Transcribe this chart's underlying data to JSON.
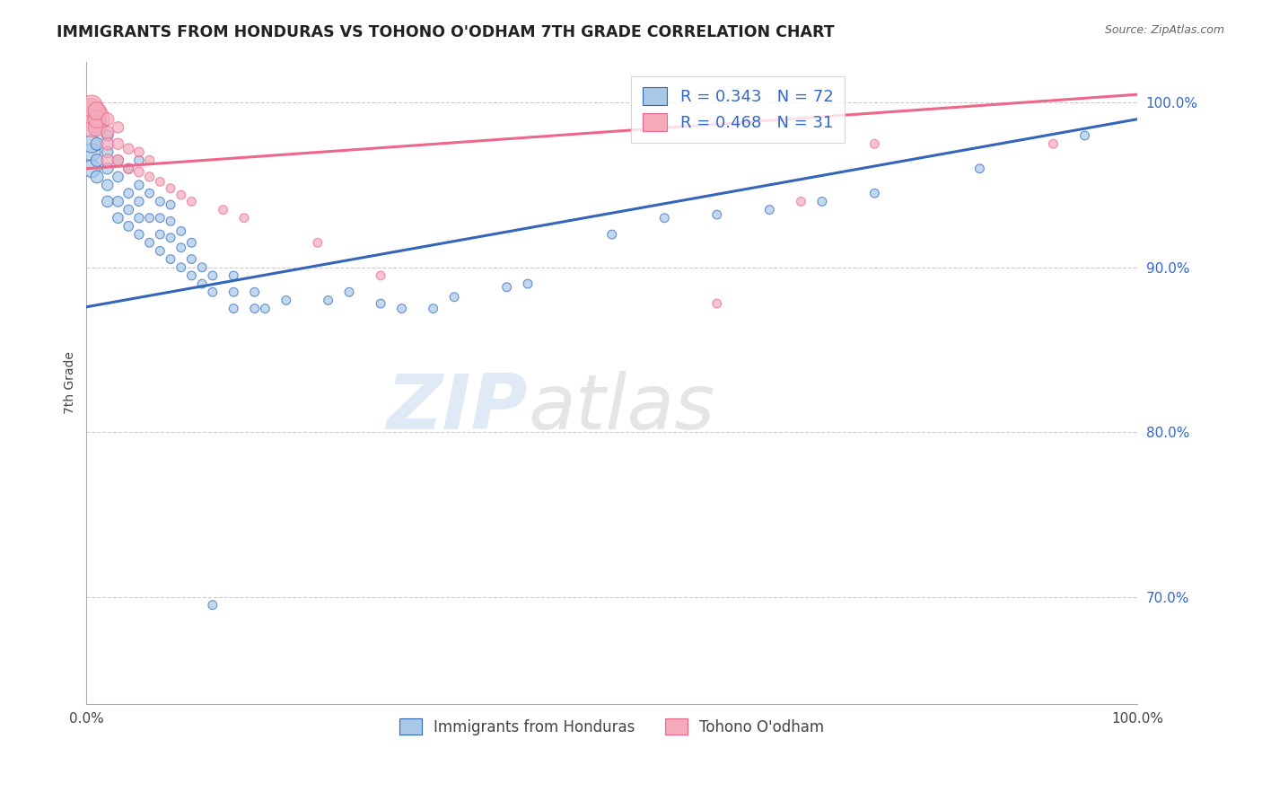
{
  "title": "IMMIGRANTS FROM HONDURAS VS TOHONO O'ODHAM 7TH GRADE CORRELATION CHART",
  "source": "Source: ZipAtlas.com",
  "ylabel": "7th Grade",
  "xlim": [
    0.0,
    1.0
  ],
  "ylim": [
    0.635,
    1.025
  ],
  "yticks": [
    0.7,
    0.8,
    0.9,
    1.0
  ],
  "ytick_labels": [
    "70.0%",
    "80.0%",
    "90.0%",
    "100.0%"
  ],
  "blue_R": 0.343,
  "blue_N": 72,
  "pink_R": 0.468,
  "pink_N": 31,
  "blue_color": "#A8C8E8",
  "pink_color": "#F4AABB",
  "blue_line_color": "#3366BB",
  "pink_line_color": "#EE6688",
  "legend_text_color": "#3366CC",
  "background_color": "#FFFFFF",
  "grid_color": "#CCCCCC",
  "blue_line_x": [
    0.0,
    1.0
  ],
  "blue_line_y": [
    0.876,
    0.99
  ],
  "pink_line_x": [
    0.0,
    1.0
  ],
  "pink_line_y": [
    0.96,
    1.005
  ],
  "blue_scatter_x": [
    0.005,
    0.005,
    0.005,
    0.01,
    0.01,
    0.01,
    0.01,
    0.01,
    0.01,
    0.02,
    0.02,
    0.02,
    0.02,
    0.02,
    0.03,
    0.03,
    0.03,
    0.03,
    0.04,
    0.04,
    0.04,
    0.04,
    0.05,
    0.05,
    0.05,
    0.05,
    0.05,
    0.06,
    0.06,
    0.06,
    0.07,
    0.07,
    0.07,
    0.07,
    0.08,
    0.08,
    0.08,
    0.08,
    0.09,
    0.09,
    0.09,
    0.1,
    0.1,
    0.1,
    0.11,
    0.11,
    0.12,
    0.12,
    0.12,
    0.14,
    0.14,
    0.14,
    0.16,
    0.16,
    0.17,
    0.19,
    0.23,
    0.25,
    0.28,
    0.3,
    0.33,
    0.35,
    0.4,
    0.42,
    0.5,
    0.55,
    0.6,
    0.65,
    0.7,
    0.75,
    0.85,
    0.95
  ],
  "blue_scatter_y": [
    0.97,
    0.96,
    0.975,
    0.955,
    0.965,
    0.975,
    0.985,
    0.99,
    0.995,
    0.94,
    0.95,
    0.96,
    0.97,
    0.98,
    0.93,
    0.94,
    0.955,
    0.965,
    0.925,
    0.935,
    0.945,
    0.96,
    0.92,
    0.93,
    0.94,
    0.95,
    0.965,
    0.915,
    0.93,
    0.945,
    0.91,
    0.92,
    0.93,
    0.94,
    0.905,
    0.918,
    0.928,
    0.938,
    0.9,
    0.912,
    0.922,
    0.895,
    0.905,
    0.915,
    0.89,
    0.9,
    0.695,
    0.885,
    0.895,
    0.875,
    0.885,
    0.895,
    0.875,
    0.885,
    0.875,
    0.88,
    0.88,
    0.885,
    0.878,
    0.875,
    0.875,
    0.882,
    0.888,
    0.89,
    0.92,
    0.93,
    0.932,
    0.935,
    0.94,
    0.945,
    0.96,
    0.98
  ],
  "blue_scatter_size": [
    200,
    200,
    200,
    100,
    100,
    100,
    100,
    100,
    100,
    80,
    80,
    80,
    80,
    80,
    70,
    70,
    70,
    70,
    60,
    60,
    60,
    60,
    55,
    55,
    55,
    55,
    55,
    50,
    50,
    50,
    50,
    50,
    50,
    50,
    50,
    50,
    50,
    50,
    50,
    50,
    50,
    50,
    50,
    50,
    50,
    50,
    50,
    50,
    50,
    50,
    50,
    50,
    50,
    50,
    50,
    50,
    50,
    50,
    50,
    50,
    50,
    50,
    50,
    50,
    50,
    50,
    50,
    50,
    50,
    50,
    50,
    50
  ],
  "pink_scatter_x": [
    0.005,
    0.005,
    0.005,
    0.01,
    0.01,
    0.01,
    0.02,
    0.02,
    0.02,
    0.02,
    0.03,
    0.03,
    0.03,
    0.04,
    0.04,
    0.05,
    0.05,
    0.06,
    0.06,
    0.07,
    0.08,
    0.09,
    0.1,
    0.13,
    0.15,
    0.22,
    0.28,
    0.6,
    0.68,
    0.75,
    0.92
  ],
  "pink_scatter_y": [
    0.99,
    0.995,
    0.998,
    0.985,
    0.99,
    0.995,
    0.965,
    0.975,
    0.982,
    0.99,
    0.965,
    0.975,
    0.985,
    0.96,
    0.972,
    0.958,
    0.97,
    0.955,
    0.965,
    0.952,
    0.948,
    0.944,
    0.94,
    0.935,
    0.93,
    0.915,
    0.895,
    0.878,
    0.94,
    0.975,
    0.975
  ],
  "pink_scatter_size": [
    800,
    400,
    300,
    200,
    200,
    200,
    100,
    100,
    100,
    100,
    80,
    80,
    80,
    70,
    70,
    60,
    60,
    55,
    55,
    50,
    50,
    50,
    50,
    50,
    50,
    50,
    50,
    50,
    50,
    50,
    50
  ]
}
